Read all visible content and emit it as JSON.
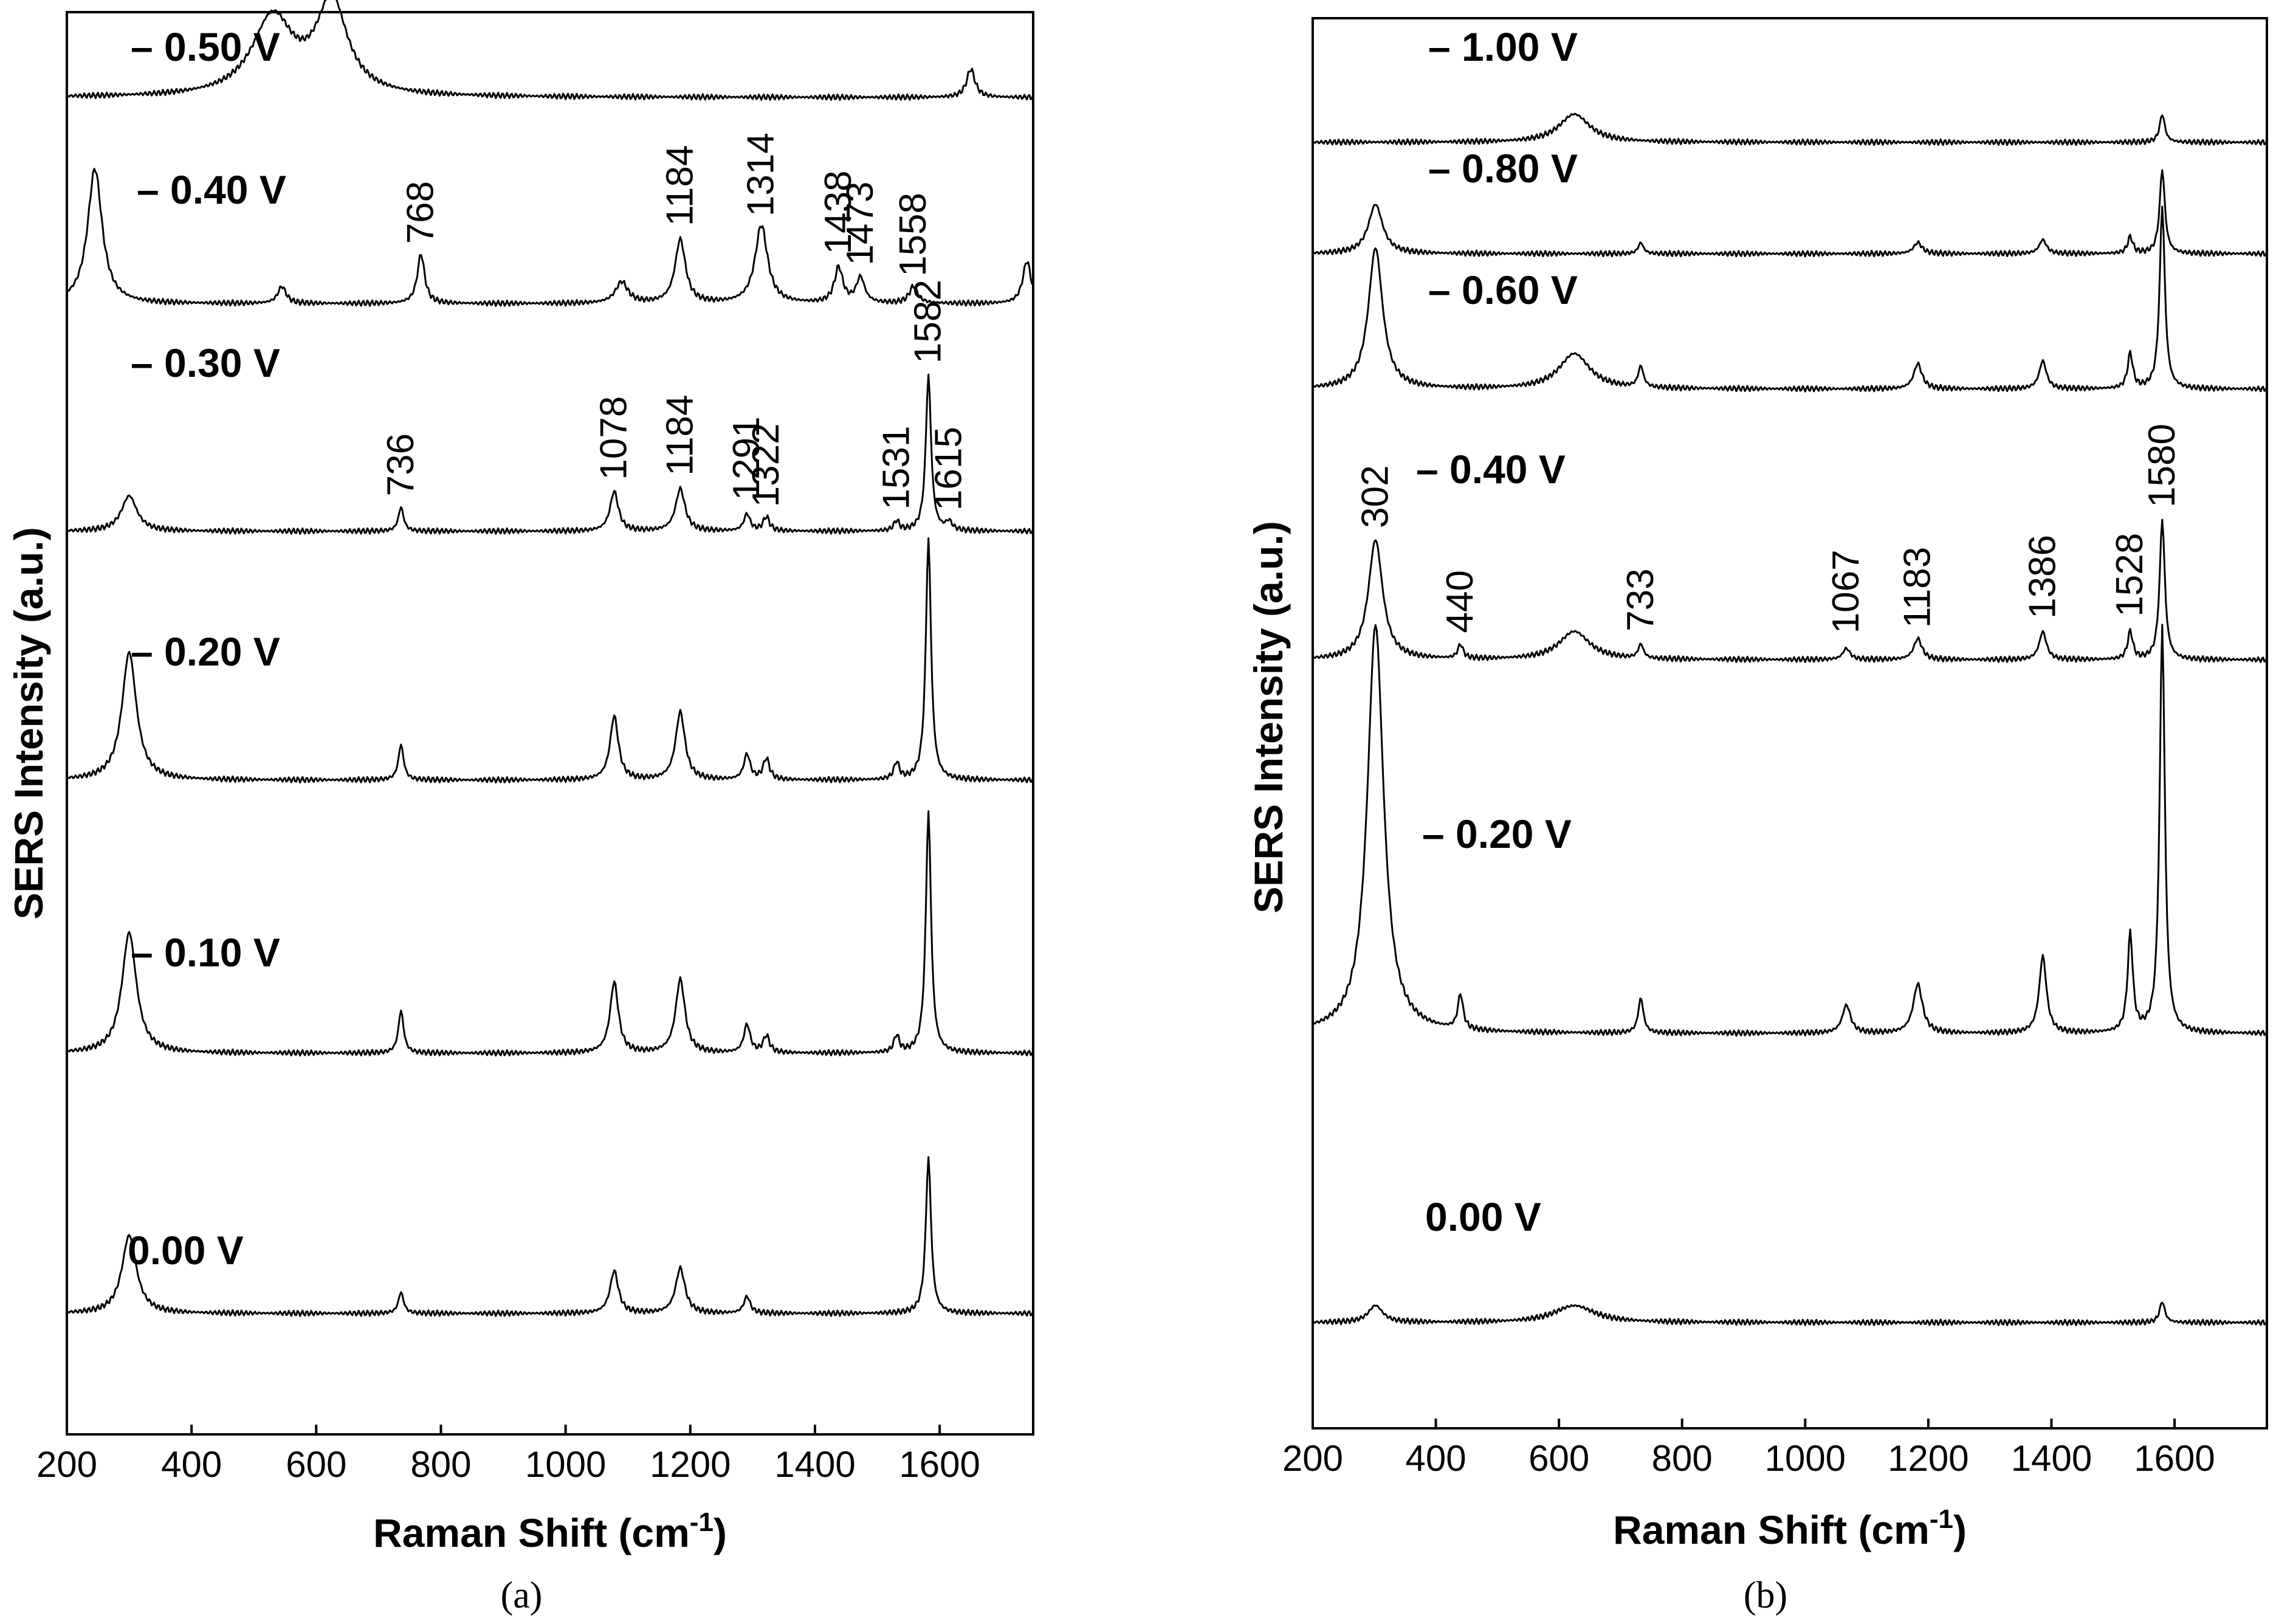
{
  "chart_data": [
    {
      "type": "line",
      "panel_label": "(a)",
      "xlabel": "Raman Shift (cm",
      "xlabel_sup": "-1",
      "xlabel_close": ")",
      "ylabel": "SERS Intensity (a.u.)",
      "xlim": [
        200,
        1750
      ],
      "xticks": [
        "200",
        "400",
        "600",
        "800",
        "1000",
        "1200",
        "1400",
        "1600"
      ],
      "grid": false,
      "series": [
        {
          "name": "– 0.50 V",
          "baseline": 0.06,
          "peaks": [
            [
              530,
              0.055,
              40
            ],
            [
              625,
              0.065,
              30
            ],
            [
              1650,
              0.02,
              8
            ]
          ],
          "labels": []
        },
        {
          "name": "– 0.40 V",
          "baseline": 0.205,
          "peaks": [
            [
              245,
              0.095,
              14
            ],
            [
              545,
              0.012,
              8
            ],
            [
              768,
              0.035,
              7
            ],
            [
              1090,
              0.015,
              12
            ],
            [
              1184,
              0.045,
              10
            ],
            [
              1314,
              0.055,
              12
            ],
            [
              1438,
              0.025,
              8
            ],
            [
              1473,
              0.018,
              8
            ],
            [
              1558,
              0.012,
              8
            ],
            [
              1740,
              0.03,
              8
            ]
          ],
          "labels": [
            "768",
            "1184",
            "1314",
            "1438",
            "1473",
            "1558"
          ]
        },
        {
          "name": "– 0.30 V",
          "baseline": 0.365,
          "peaks": [
            [
              300,
              0.025,
              15
            ],
            [
              736,
              0.017,
              5
            ],
            [
              1078,
              0.028,
              8
            ],
            [
              1184,
              0.03,
              9
            ],
            [
              1291,
              0.012,
              6
            ],
            [
              1322,
              0.01,
              6
            ],
            [
              1531,
              0.007,
              5
            ],
            [
              1582,
              0.11,
              5
            ],
            [
              1615,
              0.006,
              6
            ]
          ],
          "labels": [
            "736",
            "1078",
            "1184",
            "1291",
            "1322",
            "1531",
            "1582",
            "1615"
          ]
        },
        {
          "name": "– 0.20 V",
          "baseline": 0.54,
          "peaks": [
            [
              300,
              0.09,
              14
            ],
            [
              736,
              0.025,
              5
            ],
            [
              1078,
              0.045,
              8
            ],
            [
              1184,
              0.048,
              9
            ],
            [
              1291,
              0.018,
              6
            ],
            [
              1322,
              0.015,
              6
            ],
            [
              1531,
              0.012,
              5
            ],
            [
              1582,
              0.17,
              5
            ]
          ],
          "labels": []
        },
        {
          "name": "– 0.10 V",
          "baseline": 0.732,
          "peaks": [
            [
              300,
              0.085,
              14
            ],
            [
              736,
              0.03,
              5
            ],
            [
              1078,
              0.05,
              8
            ],
            [
              1184,
              0.052,
              9
            ],
            [
              1291,
              0.02,
              6
            ],
            [
              1322,
              0.012,
              6
            ],
            [
              1531,
              0.012,
              5
            ],
            [
              1582,
              0.17,
              5
            ]
          ],
          "labels": []
        },
        {
          "name": "0.00 V",
          "baseline": 0.915,
          "peaks": [
            [
              300,
              0.055,
              14
            ],
            [
              736,
              0.015,
              5
            ],
            [
              1078,
              0.03,
              8
            ],
            [
              1184,
              0.032,
              9
            ],
            [
              1291,
              0.012,
              6
            ],
            [
              1582,
              0.11,
              5
            ]
          ],
          "labels": []
        }
      ]
    },
    {
      "type": "line",
      "panel_label": "(b)",
      "xlabel": "Raman Shift (cm",
      "xlabel_sup": "-1",
      "xlabel_close": ")",
      "ylabel": "SERS Intensity (a.u.)",
      "xlim": [
        200,
        1750
      ],
      "xticks": [
        "200",
        "400",
        "600",
        "800",
        "1000",
        "1200",
        "1400",
        "1600"
      ],
      "grid": false,
      "series": [
        {
          "name": "– 1.00 V",
          "baseline": 0.088,
          "peaks": [
            [
              625,
              0.02,
              30
            ],
            [
              1580,
              0.02,
              5
            ]
          ],
          "labels": []
        },
        {
          "name": "– 0.80 V",
          "baseline": 0.167,
          "peaks": [
            [
              302,
              0.035,
              14
            ],
            [
              733,
              0.008,
              5
            ],
            [
              1183,
              0.008,
              8
            ],
            [
              1386,
              0.01,
              7
            ],
            [
              1528,
              0.012,
              5
            ],
            [
              1580,
              0.06,
              5
            ]
          ],
          "labels": []
        },
        {
          "name": "– 0.60 V",
          "baseline": 0.263,
          "peaks": [
            [
              302,
              0.1,
              14
            ],
            [
              625,
              0.025,
              30
            ],
            [
              733,
              0.015,
              5
            ],
            [
              1183,
              0.018,
              8
            ],
            [
              1386,
              0.02,
              7
            ],
            [
              1528,
              0.025,
              5
            ],
            [
              1580,
              0.13,
              5
            ]
          ],
          "labels": []
        },
        {
          "name": "– 0.40 V",
          "baseline": 0.455,
          "peaks": [
            [
              302,
              0.085,
              14
            ],
            [
              440,
              0.01,
              5
            ],
            [
              625,
              0.02,
              30
            ],
            [
              733,
              0.01,
              5
            ],
            [
              1067,
              0.008,
              7
            ],
            [
              1183,
              0.015,
              8
            ],
            [
              1386,
              0.02,
              7
            ],
            [
              1528,
              0.02,
              5
            ],
            [
              1580,
              0.1,
              5
            ]
          ],
          "labels": [
            "302",
            "440",
            "733",
            "1067",
            "1183",
            "1386",
            "1528",
            "1580"
          ]
        },
        {
          "name": "– 0.20 V",
          "baseline": 0.72,
          "peaks": [
            [
              302,
              0.29,
              16
            ],
            [
              440,
              0.025,
              5
            ],
            [
              733,
              0.025,
              5
            ],
            [
              1067,
              0.02,
              8
            ],
            [
              1183,
              0.035,
              9
            ],
            [
              1386,
              0.055,
              7
            ],
            [
              1528,
              0.07,
              5
            ],
            [
              1580,
              0.29,
              5
            ]
          ],
          "labels": []
        },
        {
          "name": "0.00 V",
          "baseline": 0.925,
          "peaks": [
            [
              302,
              0.012,
              14
            ],
            [
              625,
              0.012,
              40
            ],
            [
              1580,
              0.015,
              5
            ]
          ],
          "labels": []
        }
      ]
    }
  ]
}
